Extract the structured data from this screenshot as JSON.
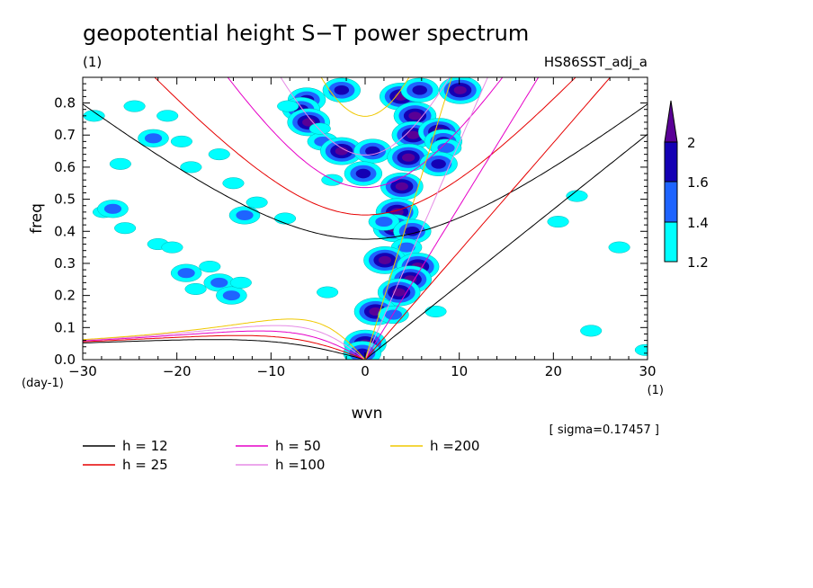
{
  "chart_data": {
    "type": "contour",
    "title": "geopotential height S−T power spectrum",
    "subtitle_left": "(1)",
    "subtitle_right": "HS86SST_adj_a",
    "xlabel": "wvn",
    "ylabel": "freq",
    "x_unit": "(1)",
    "y_unit": "(day-1)",
    "xlim": [
      -30,
      30
    ],
    "ylim": [
      0,
      0.88
    ],
    "x_ticks": [
      -30,
      -20,
      -10,
      0,
      10,
      20,
      30
    ],
    "x_tick_labels": [
      "−30",
      "−20",
      "−10",
      "0",
      "10",
      "20",
      "30"
    ],
    "y_ticks": [
      0,
      0.1,
      0.2,
      0.3,
      0.4,
      0.5,
      0.6,
      0.7,
      0.8
    ],
    "y_tick_labels": [
      "0.0",
      "0.1",
      "0.2",
      "0.3",
      "0.4",
      "0.5",
      "0.6",
      "0.7",
      "0.8"
    ],
    "sigma_note": "[ sigma=0.17457 ]",
    "colorbar": {
      "levels": [
        1.2,
        1.4,
        1.6,
        2
      ],
      "level_labels": [
        "1.2",
        "1.4",
        "1.6",
        "2"
      ],
      "colors": [
        "#00ffff",
        "#1e64ff",
        "#1400b4",
        "#5a0096"
      ]
    },
    "dispersion_curves": [
      {
        "label": "h = 12",
        "h": 12,
        "color": "#000000"
      },
      {
        "label": "h = 25",
        "h": 25,
        "color": "#e60000"
      },
      {
        "label": "h = 50",
        "h": 50,
        "color": "#e600c8"
      },
      {
        "label": "h =100",
        "h": 100,
        "color": "#e68ce6"
      },
      {
        "label": "h =200",
        "h": 200,
        "color": "#f0c800"
      }
    ],
    "power_blobs": [
      {
        "x": 3.8,
        "y": 0.82,
        "level": 2
      },
      {
        "x": -2.5,
        "y": 0.84,
        "level": 1.6
      },
      {
        "x": 5.8,
        "y": 0.84,
        "level": 1.6
      },
      {
        "x": 10.1,
        "y": 0.84,
        "level": 2
      },
      {
        "x": -6.2,
        "y": 0.81,
        "level": 1.6
      },
      {
        "x": -6.8,
        "y": 0.78,
        "level": 1.6
      },
      {
        "x": -6.0,
        "y": 0.74,
        "level": 2
      },
      {
        "x": -8.2,
        "y": 0.79,
        "level": 1.2
      },
      {
        "x": 5.3,
        "y": 0.76,
        "level": 2
      },
      {
        "x": 5.1,
        "y": 0.7,
        "level": 2
      },
      {
        "x": -4.5,
        "y": 0.68,
        "level": 1.4
      },
      {
        "x": -4.8,
        "y": 0.72,
        "level": 1.2
      },
      {
        "x": -2.5,
        "y": 0.65,
        "level": 2
      },
      {
        "x": 0.8,
        "y": 0.65,
        "level": 1.6
      },
      {
        "x": 4.6,
        "y": 0.63,
        "level": 2
      },
      {
        "x": 7.9,
        "y": 0.71,
        "level": 2
      },
      {
        "x": 8.3,
        "y": 0.68,
        "level": 1.6
      },
      {
        "x": 8.6,
        "y": 0.66,
        "level": 1.4
      },
      {
        "x": 7.8,
        "y": 0.61,
        "level": 1.6
      },
      {
        "x": -0.2,
        "y": 0.58,
        "level": 1.6
      },
      {
        "x": -3.5,
        "y": 0.56,
        "level": 1.2
      },
      {
        "x": 3.9,
        "y": 0.54,
        "level": 2
      },
      {
        "x": 3.4,
        "y": 0.46,
        "level": 2
      },
      {
        "x": 3.1,
        "y": 0.41,
        "level": 2
      },
      {
        "x": 2.0,
        "y": 0.43,
        "level": 1.4
      },
      {
        "x": 5.0,
        "y": 0.4,
        "level": 1.6
      },
      {
        "x": 4.4,
        "y": 0.35,
        "level": 1.4
      },
      {
        "x": 2.1,
        "y": 0.31,
        "level": 2
      },
      {
        "x": 5.6,
        "y": 0.29,
        "level": 2
      },
      {
        "x": 4.8,
        "y": 0.25,
        "level": 2
      },
      {
        "x": 3.6,
        "y": 0.21,
        "level": 2
      },
      {
        "x": 1.1,
        "y": 0.15,
        "level": 2
      },
      {
        "x": 3.0,
        "y": 0.14,
        "level": 1.4
      },
      {
        "x": 0.0,
        "y": 0.05,
        "level": 2
      },
      {
        "x": -0.3,
        "y": 0.02,
        "level": 1.6
      },
      {
        "x": -24.5,
        "y": 0.79,
        "level": 1.2
      },
      {
        "x": -28.8,
        "y": 0.76,
        "level": 1.2
      },
      {
        "x": -21.0,
        "y": 0.76,
        "level": 1.2
      },
      {
        "x": -22.5,
        "y": 0.69,
        "level": 1.4
      },
      {
        "x": -19.5,
        "y": 0.68,
        "level": 1.2
      },
      {
        "x": -15.5,
        "y": 0.64,
        "level": 1.2
      },
      {
        "x": -26.0,
        "y": 0.61,
        "level": 1.2
      },
      {
        "x": -18.5,
        "y": 0.6,
        "level": 1.2
      },
      {
        "x": -14.0,
        "y": 0.55,
        "level": 1.2
      },
      {
        "x": -11.5,
        "y": 0.49,
        "level": 1.2
      },
      {
        "x": -27.8,
        "y": 0.46,
        "level": 1.2
      },
      {
        "x": -26.8,
        "y": 0.47,
        "level": 1.4
      },
      {
        "x": -25.5,
        "y": 0.41,
        "level": 1.2
      },
      {
        "x": -12.8,
        "y": 0.45,
        "level": 1.4
      },
      {
        "x": -8.5,
        "y": 0.44,
        "level": 1.2
      },
      {
        "x": -22.0,
        "y": 0.36,
        "level": 1.2
      },
      {
        "x": -20.5,
        "y": 0.35,
        "level": 1.2
      },
      {
        "x": -19.0,
        "y": 0.27,
        "level": 1.4
      },
      {
        "x": -16.5,
        "y": 0.29,
        "level": 1.2
      },
      {
        "x": -15.5,
        "y": 0.24,
        "level": 1.4
      },
      {
        "x": -14.2,
        "y": 0.2,
        "level": 1.4
      },
      {
        "x": -18.0,
        "y": 0.22,
        "level": 1.2
      },
      {
        "x": -13.2,
        "y": 0.24,
        "level": 1.2
      },
      {
        "x": -4.0,
        "y": 0.21,
        "level": 1.2
      },
      {
        "x": 22.5,
        "y": 0.51,
        "level": 1.2
      },
      {
        "x": 20.5,
        "y": 0.43,
        "level": 1.2
      },
      {
        "x": 27.0,
        "y": 0.35,
        "level": 1.2
      },
      {
        "x": 29.8,
        "y": 0.03,
        "level": 1.2
      },
      {
        "x": 24.0,
        "y": 0.09,
        "level": 1.2
      },
      {
        "x": 7.5,
        "y": 0.15,
        "level": 1.2
      }
    ]
  }
}
